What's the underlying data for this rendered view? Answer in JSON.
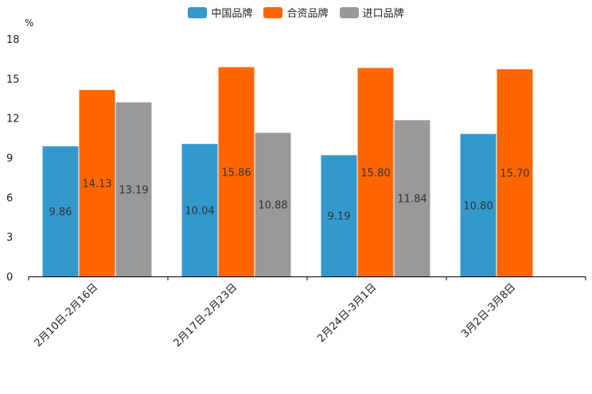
{
  "chart_data": {
    "type": "bar",
    "unit_label": "%",
    "categories": [
      "2月10日-2月16日",
      "2月17日-2月23日",
      "2月24日-3月1日",
      "3月2日-3月8日"
    ],
    "series": [
      {
        "name": "中国品牌",
        "color": "#3399cc",
        "values": [
          9.86,
          10.04,
          9.19,
          10.8
        ],
        "labels": [
          "9.86",
          "10.04",
          "9.19",
          "10.80"
        ]
      },
      {
        "name": "合资品牌",
        "color": "#ff6600",
        "values": [
          14.13,
          15.86,
          15.8,
          15.7
        ],
        "labels": [
          "14.13",
          "15.86",
          "15.80",
          "15.70"
        ]
      },
      {
        "name": "进口品牌",
        "color": "#999999",
        "values": [
          13.19,
          10.88,
          11.84,
          null
        ],
        "labels": [
          "13.19",
          "10.88",
          "11.84",
          null
        ]
      }
    ],
    "ylim": [
      0,
      18
    ],
    "yticks": [
      "0",
      "3",
      "6",
      "9",
      "12",
      "15",
      "18"
    ],
    "xlabel": "",
    "ylabel": "%"
  }
}
